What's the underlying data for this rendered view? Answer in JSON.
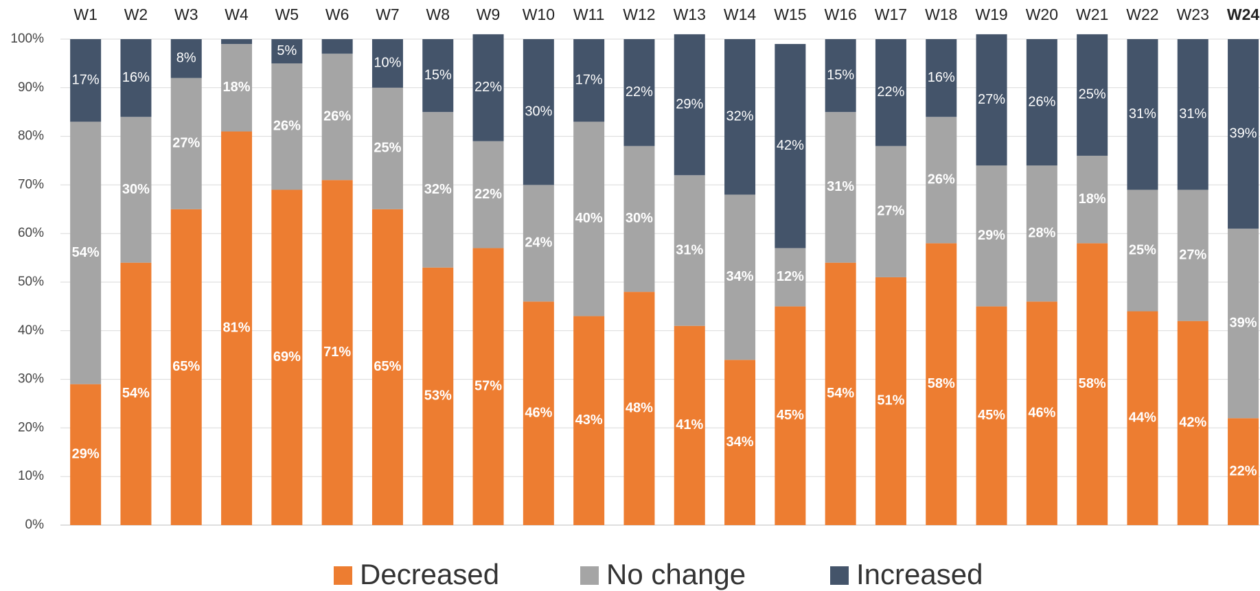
{
  "chart_data": {
    "type": "stacked_bar",
    "categories": [
      "W1",
      "W2",
      "W3",
      "W4",
      "W5",
      "W6",
      "W7",
      "W8",
      "W9",
      "W10",
      "W11",
      "W12",
      "W13",
      "W14",
      "W15",
      "W16",
      "W17",
      "W18",
      "W19",
      "W20",
      "W21",
      "W22",
      "W23",
      "W24"
    ],
    "category_colors": [
      "#222222",
      "#222222",
      "#222222",
      "#222222",
      "#222222",
      "#222222",
      "#222222",
      "#222222",
      "#222222",
      "#222222",
      "#222222",
      "#222222",
      "#222222",
      "#222222",
      "#222222",
      "#222222",
      "#222222",
      "#222222",
      "#222222",
      "#222222",
      "#222222",
      "#222222",
      "#222222",
      "#70ad47"
    ],
    "series": [
      {
        "name": "Decreased",
        "color": "#ed7d31",
        "values": [
          29,
          54,
          65,
          81,
          69,
          71,
          65,
          53,
          57,
          46,
          43,
          48,
          41,
          34,
          45,
          54,
          51,
          58,
          45,
          46,
          58,
          44,
          42,
          22
        ],
        "value_labels": [
          "29%",
          "54%",
          "65%",
          "81%",
          "69%",
          "71%",
          "65%",
          "53%",
          "57%",
          "46%",
          "43%",
          "48%",
          "41%",
          "34%",
          "45%",
          "54%",
          "51%",
          "58%",
          "45%",
          "46%",
          "58%",
          "44%",
          "42%",
          "22%"
        ]
      },
      {
        "name": "No change",
        "color": "#a5a5a5",
        "values": [
          54,
          30,
          27,
          18,
          26,
          26,
          25,
          32,
          22,
          24,
          40,
          30,
          31,
          34,
          12,
          31,
          27,
          26,
          29,
          28,
          18,
          25,
          27,
          39
        ],
        "value_labels": [
          "54%",
          "30%",
          "27%",
          "18%",
          "26%",
          "26%",
          "25%",
          "32%",
          "22%",
          "24%",
          "40%",
          "30%",
          "31%",
          "34%",
          "12%",
          "31%",
          "27%",
          "26%",
          "29%",
          "28%",
          "18%",
          "25%",
          "27%",
          "39%"
        ]
      },
      {
        "name": "Increased",
        "color": "#44546a",
        "values": [
          17,
          16,
          8,
          1,
          5,
          3,
          10,
          15,
          22,
          30,
          17,
          22,
          29,
          32,
          42,
          15,
          22,
          16,
          27,
          26,
          25,
          31,
          31,
          39
        ],
        "value_labels": [
          "17%",
          "16%",
          "8%",
          null,
          "5%",
          null,
          "10%",
          "15%",
          "22%",
          "30%",
          "17%",
          "22%",
          "29%",
          "32%",
          "42%",
          "15%",
          "22%",
          "16%",
          "27%",
          "26%",
          "25%",
          "31%",
          "31%",
          "39%"
        ]
      }
    ],
    "ylim": [
      0,
      100
    ],
    "yticks": [
      {
        "value": 0,
        "label": "0%"
      },
      {
        "value": 10,
        "label": "10%"
      },
      {
        "value": 20,
        "label": "20%"
      },
      {
        "value": 30,
        "label": "30%"
      },
      {
        "value": 40,
        "label": "40%"
      },
      {
        "value": 50,
        "label": "50%"
      },
      {
        "value": 60,
        "label": "60%"
      },
      {
        "value": 70,
        "label": "70%"
      },
      {
        "value": 80,
        "label": "80%"
      },
      {
        "value": 90,
        "label": "90%"
      },
      {
        "value": 100,
        "label": "100%"
      }
    ],
    "grid": true,
    "legend": "bottom"
  }
}
